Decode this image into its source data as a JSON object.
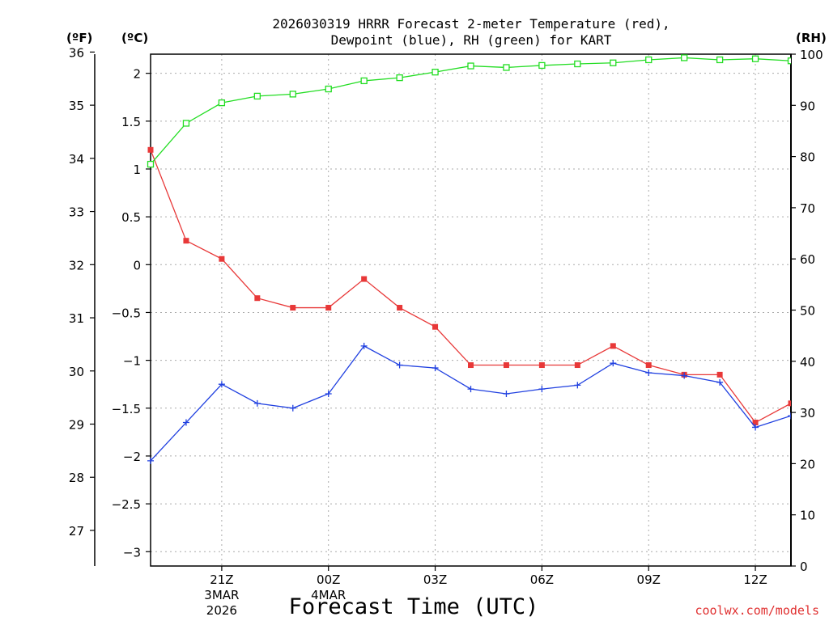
{
  "chart_data": {
    "type": "line",
    "title_line1": "2026030319 HRRR Forecast 2-meter Temperature (red),",
    "title_line2": "Dewpoint (blue), RH (green) for KART",
    "xlabel": "Forecast Time (UTC)",
    "credit": "coolwx.com/models",
    "units": {
      "fahrenheit": "(ºF)",
      "celsius": "(ºC)",
      "rh": "(RH)"
    },
    "x_hours": [
      19,
      20,
      21,
      22,
      23,
      24,
      25,
      26,
      27,
      28,
      29,
      30,
      31,
      32,
      33,
      34,
      35,
      36,
      37
    ],
    "xlim": [
      19,
      37
    ],
    "x_ticks": [
      {
        "hour": 21,
        "label": "21Z",
        "sub1": "3MAR",
        "sub2": "2026"
      },
      {
        "hour": 24,
        "label": "00Z",
        "sub1": "4MAR",
        "sub2": ""
      },
      {
        "hour": 27,
        "label": "03Z",
        "sub1": "",
        "sub2": ""
      },
      {
        "hour": 30,
        "label": "06Z",
        "sub1": "",
        "sub2": ""
      },
      {
        "hour": 33,
        "label": "09Z",
        "sub1": "",
        "sub2": ""
      },
      {
        "hour": 36,
        "label": "12Z",
        "sub1": "",
        "sub2": ""
      }
    ],
    "celsius_axis": {
      "ylim": [
        -3.15,
        2.2
      ],
      "ticks": [
        "-3",
        "-2.5",
        "-2",
        "-1.5",
        "-1",
        "-0.5",
        "0",
        "0.5",
        "1",
        "1.5",
        "2"
      ]
    },
    "fahrenheit_axis": {
      "ticks": [
        "27",
        "28",
        "29",
        "30",
        "31",
        "32",
        "33",
        "34",
        "35",
        "36"
      ]
    },
    "rh_axis": {
      "ylim": [
        0,
        100
      ],
      "ticks": [
        "0",
        "10",
        "20",
        "30",
        "40",
        "50",
        "60",
        "70",
        "80",
        "90",
        "100"
      ]
    },
    "series": [
      {
        "name": "Temperature",
        "axis": "celsius",
        "color": "#e83838",
        "marker": "filled-square",
        "values": [
          1.2,
          0.25,
          0.06,
          -0.35,
          -0.45,
          -0.45,
          -0.15,
          -0.45,
          -0.65,
          -1.05,
          -1.05,
          -1.05,
          -1.05,
          -0.85,
          -1.05,
          -1.15,
          -1.15,
          -1.65,
          -1.45
        ]
      },
      {
        "name": "Dewpoint",
        "axis": "celsius",
        "color": "#2040e0",
        "marker": "plus",
        "values": [
          -2.05,
          -1.65,
          -1.25,
          -1.45,
          -1.5,
          -1.35,
          -0.85,
          -1.05,
          -1.08,
          -1.3,
          -1.35,
          -1.3,
          -1.26,
          -1.03,
          -1.13,
          -1.16,
          -1.23,
          -1.7,
          -1.58
        ]
      },
      {
        "name": "RH",
        "axis": "rh",
        "color": "#22dd22",
        "marker": "open-square",
        "values": [
          78.5,
          86.5,
          90.5,
          91.8,
          92.2,
          93.2,
          94.8,
          95.4,
          96.5,
          97.7,
          97.4,
          97.8,
          98.1,
          98.3,
          98.9,
          99.3,
          98.9,
          99.1,
          98.7
        ]
      }
    ]
  }
}
